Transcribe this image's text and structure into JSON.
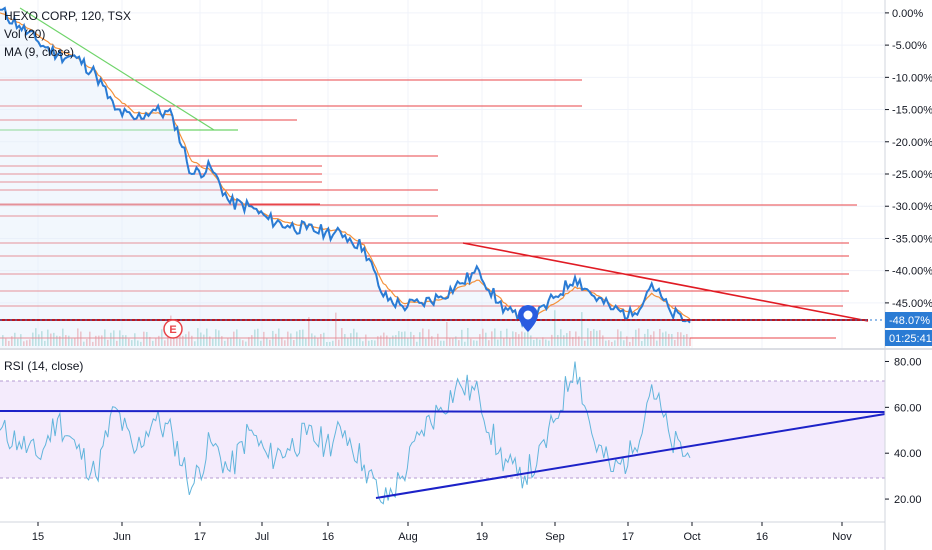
{
  "legend": {
    "symbol": "HEXO CORP, 120, TSX",
    "volume": "Vol (20)",
    "ma": "MA (9, close)",
    "rsi": "RSI (14, close)"
  },
  "earnings_marker": "E",
  "price_axis": {
    "ticks": [
      "0.00%",
      "-5.00%",
      "-10.00%",
      "-15.00%",
      "-20.00%",
      "-25.00%",
      "-30.00%",
      "-35.00%",
      "-40.00%",
      "-45.00%"
    ],
    "current_label": "-48.07%",
    "countdown": "01:25:41"
  },
  "rsi_axis": {
    "ticks": [
      "80.00",
      "60.00",
      "40.00",
      "20.00"
    ]
  },
  "time_axis": {
    "ticks": [
      "15",
      "Jun",
      "17",
      "Jul",
      "16",
      "Aug",
      "19",
      "Sep",
      "17",
      "Oct",
      "16",
      "Nov"
    ]
  },
  "colors": {
    "price_line": "#2a7bd4",
    "ma_line": "#f4913b",
    "resistance": "#e8454a",
    "downtrend_price": "#e01b24",
    "green_trend": "#6fd46a",
    "rsi_line": "#62b5dc",
    "rsi_trend": "#1c22c8",
    "current_price_bg": "#2a7bd4"
  },
  "chart_data": {
    "type": "line",
    "price_series": {
      "name": "",
      "x": [
        "May 10",
        "May 13",
        "May 15",
        "May 20",
        "May 25",
        "May 30",
        "Jun 3",
        "Jun 7",
        "Jun 12",
        "Jun 14",
        "Jun 17",
        "Jun 21",
        "Jun 24",
        "Jun 28",
        "Jul 2",
        "Jul 5",
        "Jul 9",
        "Jul 13",
        "Jul 17",
        "Jul 21",
        "Jul 25",
        "Jul 29",
        "Aug 2",
        "Aug 6",
        "Aug 10",
        "Aug 15",
        "Aug 20",
        "Aug 24",
        "Aug 28",
        "Sep 1",
        "Sep 5",
        "Sep 9",
        "Sep 13",
        "Sep 17",
        "Sep 21",
        "Sep 25",
        "Sep 30"
      ],
      "y": [
        0.5,
        -2.0,
        -4.5,
        -6.5,
        -7.0,
        -9.5,
        -15.0,
        -16.5,
        -15.0,
        -16.0,
        -25.0,
        -24.0,
        -29.5,
        -30.0,
        -32.0,
        -33.0,
        -33.5,
        -34.0,
        -34.5,
        -36.5,
        -44.0,
        -45.5,
        -45.0,
        -44.0,
        -42.0,
        -40.0,
        -45.0,
        -47.5,
        -47.0,
        -44.0,
        -41.0,
        -44.0,
        -46.0,
        -47.0,
        -42.0,
        -46.5,
        -48.07
      ]
    },
    "ma_series": {
      "name": "",
      "y": [
        0.0,
        -1.5,
        -3.5,
        -5.5,
        -7.0,
        -9.0,
        -13.0,
        -15.5,
        -15.5,
        -16.0,
        -23.0,
        -24.5,
        -28.5,
        -30.0,
        -31.5,
        -32.5,
        -33.0,
        -33.5,
        -34.0,
        -36.0,
        -42.0,
        -45.0,
        -45.0,
        -44.5,
        -42.5,
        -41.5,
        -44.0,
        -47.0,
        -47.0,
        -45.0,
        -42.5,
        -43.5,
        -45.5,
        -46.5,
        -43.5,
        -45.5,
        -47.5
      ]
    },
    "rsi_series": {
      "name": "",
      "x": [
        "May 10",
        "May 13",
        "May 15",
        "May 20",
        "May 25",
        "May 30",
        "Jun 3",
        "Jun 7",
        "Jun 12",
        "Jun 14",
        "Jun 17",
        "Jun 21",
        "Jun 24",
        "Jun 28",
        "Jul 2",
        "Jul 5",
        "Jul 9",
        "Jul 13",
        "Jul 17",
        "Jul 21",
        "Jul 25",
        "Jul 29",
        "Aug 2",
        "Aug 6",
        "Aug 10",
        "Aug 15",
        "Aug 20",
        "Aug 24",
        "Aug 28",
        "Sep 1",
        "Sep 5",
        "Sep 9",
        "Sep 13",
        "Sep 17",
        "Sep 21",
        "Sep 25",
        "Sep 30"
      ],
      "y": [
        50,
        45,
        38,
        55,
        42,
        30,
        60,
        40,
        55,
        48,
        25,
        45,
        32,
        50,
        38,
        42,
        48,
        44,
        50,
        35,
        18,
        30,
        50,
        60,
        70,
        65,
        40,
        30,
        35,
        55,
        80,
        45,
        32,
        40,
        70,
        45,
        38
      ]
    },
    "price_ylim": [
      -52,
      2
    ],
    "rsi_ylim": [
      10,
      85
    ]
  }
}
